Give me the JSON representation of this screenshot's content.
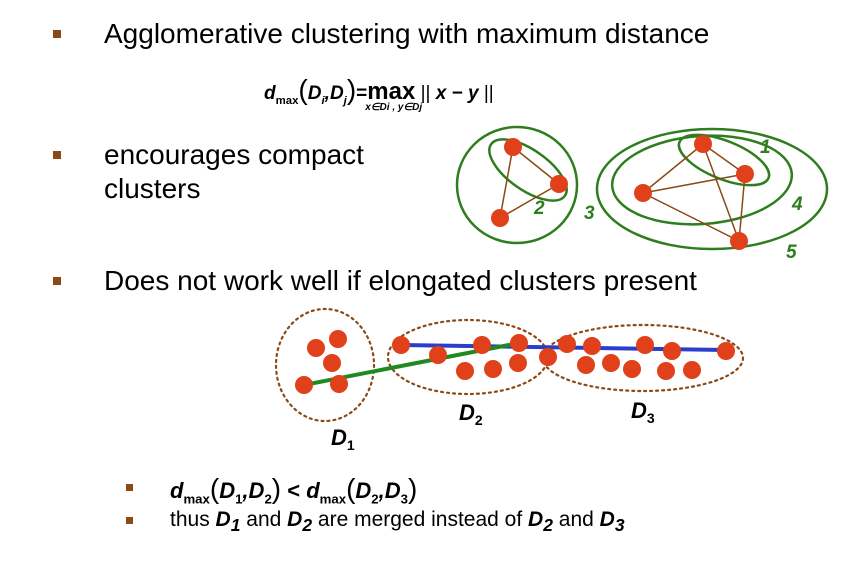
{
  "bullets": {
    "b1": "Agglomerative clustering with maximum distance",
    "b2_line1": "encourages compact",
    "b2_line2": "clusters",
    "b3": "Does not work well if elongated clusters present",
    "sub1": {
      "lhs": "d",
      "lhs_sub": "max",
      "d1": "D",
      "d1_sub": "1",
      "d2": "D",
      "d2_sub": "2",
      "op": "<",
      "rhs": "d",
      "rhs_sub": "max",
      "d3": "D",
      "d3_sub": "2",
      "d4": "D",
      "d4_sub": "3"
    },
    "sub2": {
      "p1": "thus ",
      "d1": "D",
      "d1_sub": "1",
      "p2": " and ",
      "d2": "D",
      "d2_sub": "2",
      "p3": " are merged instead of ",
      "d3": "D",
      "d3_sub": "2",
      "p4": " and ",
      "d4": "D",
      "d4_sub": "3"
    }
  },
  "formula": {
    "lhs": "d",
    "lhs_sub": "max",
    "arg1": "D",
    "arg1_sub": "i",
    "arg2": "D",
    "arg2_sub": "j",
    "equals": "=",
    "operator": "max",
    "operator_sub": "x∈Di , y∈Dj",
    "norm_open": "||",
    "body": "x − y",
    "norm_close": "||"
  },
  "top_diagram": {
    "labels": {
      "l1": "1",
      "l2": "2",
      "l3": "3",
      "l4": "4",
      "l5": "5"
    }
  },
  "bottom_diagram": {
    "labels": {
      "d1": "D",
      "d1_sub": "1",
      "d2": "D",
      "d2_sub": "2",
      "d3": "D",
      "d3_sub": "3"
    }
  },
  "colors": {
    "bullet": "#8b4a14",
    "point": "#e0401a",
    "cluster": "#2e7d1e",
    "edge": "#8b4a14",
    "dotted": "#8b4a14",
    "blue_line": "#2a3fc9",
    "green_line": "#1f8a1f"
  }
}
